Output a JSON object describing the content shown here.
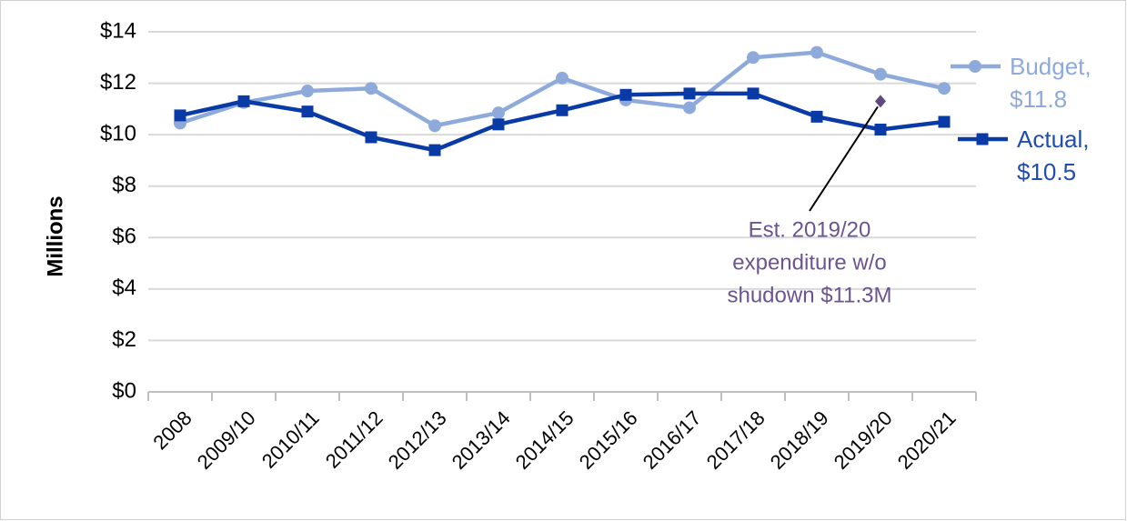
{
  "chart_data": {
    "type": "line",
    "y_axis_label": "Millions",
    "categories": [
      "2008",
      "2009/10",
      "2010/11",
      "2011/12",
      "2012/13",
      "2013/14",
      "2014/15",
      "2015/16",
      "2016/17",
      "2017/18",
      "2018/19",
      "2019/20",
      "2020/21"
    ],
    "series": [
      {
        "name": "Budget,",
        "color": "#8eaadb",
        "marker": "circle",
        "values": [
          10.45,
          11.25,
          11.7,
          11.8,
          10.35,
          10.85,
          12.2,
          11.35,
          11.05,
          13.0,
          13.2,
          12.35,
          11.8
        ],
        "value_labels": [
          null,
          null,
          null,
          null,
          null,
          null,
          null,
          null,
          null,
          null,
          null,
          null,
          "$11.8"
        ]
      },
      {
        "name": "Actual,",
        "color": "#0a3aa6",
        "marker": "square",
        "values": [
          10.75,
          11.3,
          10.9,
          9.9,
          9.4,
          10.4,
          10.95,
          11.55,
          11.6,
          11.6,
          10.7,
          10.2,
          10.5
        ],
        "value_labels": [
          null,
          null,
          null,
          null,
          null,
          null,
          null,
          null,
          null,
          null,
          null,
          null,
          "$10.5"
        ]
      }
    ],
    "annotation": {
      "category_index": 11,
      "value": 11.3,
      "color": "#5e4a7e",
      "lines": [
        "Est. 2019/20",
        "expenditure w/o",
        "shudown $11.3M"
      ]
    },
    "ylim": [
      0,
      14
    ],
    "yticks": [
      {
        "value": 0,
        "label": "$0"
      },
      {
        "value": 2,
        "label": "$2"
      },
      {
        "value": 4,
        "label": "$4"
      },
      {
        "value": 6,
        "label": "$6"
      },
      {
        "value": 8,
        "label": "$8"
      },
      {
        "value": 10,
        "label": "$10"
      },
      {
        "value": 12,
        "label": "$12"
      },
      {
        "value": 14,
        "label": "$14"
      }
    ],
    "grid": true
  }
}
